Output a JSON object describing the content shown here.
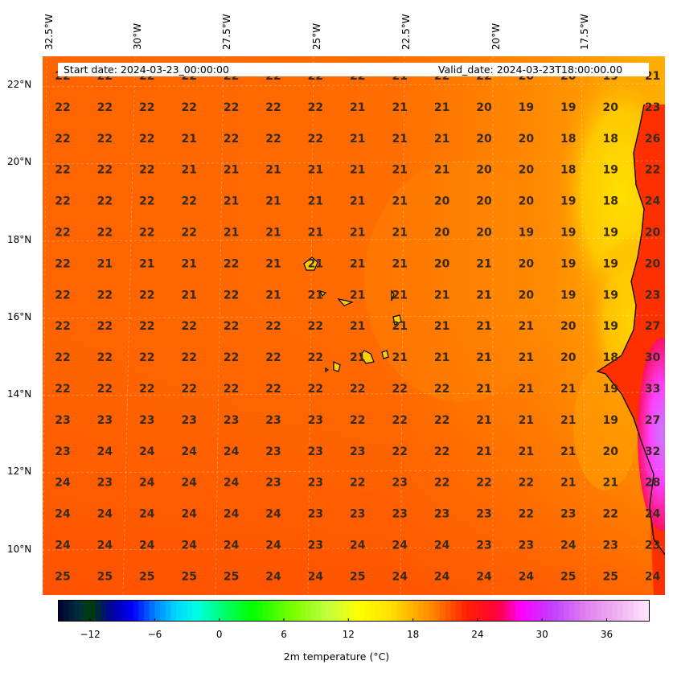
{
  "header": {
    "start_date": "Start date: 2024-03-23_00:00:00",
    "valid_date": "Valid_date: 2024-03-23T18:00:00.00"
  },
  "longitude_labels": [
    "32.5°W",
    "30°W",
    "27.5°W",
    "25°W",
    "22.5°W",
    "20°W",
    "17.5°W"
  ],
  "latitude_labels": [
    "22°N",
    "20°N",
    "18°N",
    "16°N",
    "14°N",
    "12°N",
    "10°N"
  ],
  "colorbar": {
    "label": "2m temperature ($^\\circ$C)",
    "label_display": "2m temperature (°C)",
    "min": -15,
    "max": 40,
    "ticks": [
      -12,
      -6,
      0,
      6,
      12,
      18,
      24,
      30,
      36
    ],
    "tick_labels": [
      "−12",
      "−6",
      "0",
      "6",
      "12",
      "18",
      "24",
      "30",
      "36"
    ]
  },
  "colors": {
    "ocean_main": "#ff6a00",
    "ocean_warm": "#ff5a00",
    "coastal_cool": "#ffa000",
    "land_hot": "#ff00ff",
    "label_text": "#3a2a1a"
  },
  "temperature_grid": [
    [
      "22",
      "22",
      "22",
      "22",
      "22",
      "22",
      "22",
      "22",
      "21",
      "22",
      "22",
      "20",
      "20",
      "19",
      "21"
    ],
    [
      "22",
      "22",
      "22",
      "22",
      "22",
      "22",
      "22",
      "21",
      "21",
      "21",
      "20",
      "19",
      "19",
      "20",
      "23"
    ],
    [
      "22",
      "22",
      "22",
      "21",
      "22",
      "22",
      "22",
      "21",
      "21",
      "21",
      "20",
      "20",
      "18",
      "18",
      "26"
    ],
    [
      "22",
      "22",
      "22",
      "21",
      "21",
      "21",
      "21",
      "21",
      "21",
      "21",
      "20",
      "20",
      "18",
      "19",
      "22"
    ],
    [
      "22",
      "22",
      "22",
      "22",
      "21",
      "21",
      "21",
      "21",
      "21",
      "20",
      "20",
      "20",
      "19",
      "18",
      "24"
    ],
    [
      "22",
      "22",
      "22",
      "22",
      "21",
      "21",
      "21",
      "21",
      "21",
      "20",
      "20",
      "19",
      "19",
      "19",
      "20"
    ],
    [
      "22",
      "21",
      "21",
      "21",
      "22",
      "21",
      "21",
      "21",
      "21",
      "20",
      "21",
      "20",
      "19",
      "19",
      "20"
    ],
    [
      "22",
      "22",
      "22",
      "21",
      "22",
      "21",
      "21",
      "21",
      "21",
      "21",
      "21",
      "20",
      "19",
      "19",
      "23"
    ],
    [
      "22",
      "22",
      "22",
      "22",
      "22",
      "22",
      "22",
      "21",
      "21",
      "21",
      "21",
      "21",
      "20",
      "19",
      "27"
    ],
    [
      "22",
      "22",
      "22",
      "22",
      "22",
      "22",
      "22",
      "21",
      "21",
      "21",
      "21",
      "21",
      "20",
      "18",
      "30"
    ],
    [
      "22",
      "22",
      "22",
      "22",
      "22",
      "22",
      "22",
      "22",
      "22",
      "22",
      "21",
      "21",
      "21",
      "19",
      "33"
    ],
    [
      "23",
      "23",
      "23",
      "23",
      "23",
      "23",
      "23",
      "22",
      "22",
      "22",
      "21",
      "21",
      "21",
      "19",
      "27"
    ],
    [
      "23",
      "24",
      "24",
      "24",
      "24",
      "23",
      "23",
      "23",
      "22",
      "22",
      "21",
      "21",
      "21",
      "20",
      "32"
    ],
    [
      "24",
      "23",
      "24",
      "24",
      "24",
      "23",
      "23",
      "22",
      "23",
      "22",
      "22",
      "22",
      "21",
      "21",
      "28"
    ],
    [
      "24",
      "24",
      "24",
      "24",
      "24",
      "24",
      "23",
      "23",
      "23",
      "23",
      "23",
      "22",
      "23",
      "22",
      "24"
    ],
    [
      "24",
      "24",
      "24",
      "24",
      "24",
      "24",
      "23",
      "24",
      "24",
      "24",
      "23",
      "23",
      "24",
      "23",
      "23"
    ],
    [
      "25",
      "25",
      "25",
      "25",
      "25",
      "24",
      "24",
      "25",
      "24",
      "24",
      "24",
      "24",
      "25",
      "25",
      "24"
    ]
  ]
}
